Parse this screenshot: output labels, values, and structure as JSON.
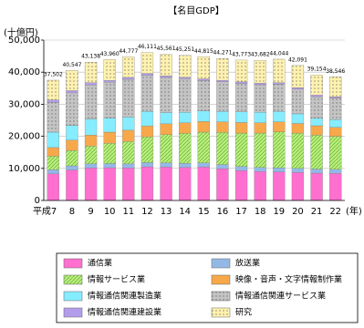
{
  "chart_data": {
    "type": "stacked_bar",
    "title": "【名目GDP】",
    "y_label": "(十億円)",
    "x_unit": "(年)",
    "categories": [
      "平成7",
      "8",
      "9",
      "10",
      "11",
      "12",
      "13",
      "14",
      "15",
      "16",
      "17",
      "18",
      "19",
      "20",
      "21",
      "22"
    ],
    "series": [
      {
        "name": "通信業",
        "color": "#ff6fcf",
        "pattern": "none",
        "values": [
          8300,
          9500,
          10100,
          10200,
          10100,
          10500,
          10400,
          10300,
          10400,
          9900,
          9300,
          9000,
          8900,
          8700,
          8500,
          8400
        ]
      },
      {
        "name": "放送業",
        "color": "#94b8e6",
        "pattern": "none",
        "values": [
          1300,
          1300,
          1300,
          1300,
          1300,
          1300,
          1300,
          1300,
          1300,
          1300,
          1300,
          1300,
          1300,
          1300,
          1300,
          1300
        ]
      },
      {
        "name": "情報サービス業",
        "color": "#b8f07c",
        "pattern": "hatch",
        "values": [
          4200,
          4800,
          5600,
          6300,
          7000,
          8000,
          8800,
          9300,
          9600,
          10000,
          10400,
          10700,
          11200,
          11000,
          10600,
          10300
        ]
      },
      {
        "name": "映像・音声・文字情報制作業",
        "color": "#f7a84a",
        "pattern": "none",
        "values": [
          2700,
          3200,
          3400,
          3500,
          3500,
          3400,
          3400,
          3300,
          3300,
          3300,
          3300,
          3200,
          3100,
          3000,
          2900,
          2800
        ]
      },
      {
        "name": "情報通信関連製造業",
        "color": "#86ecff",
        "pattern": "none",
        "values": [
          4800,
          4600,
          5000,
          4400,
          4100,
          4600,
          3500,
          3300,
          3300,
          3300,
          3300,
          3300,
          3300,
          3000,
          2300,
          2400
        ]
      },
      {
        "name": "情報通信関連サービス業",
        "color": "#c4c4c4",
        "pattern": "dots",
        "values": [
          9302,
          10147,
          10638,
          11160,
          11777,
          11211,
          10961,
          10451,
          9515,
          9171,
          8873,
          8582,
          8444,
          7691,
          6754,
          6746
        ]
      },
      {
        "name": "情報通信関連建設業",
        "color": "#b49cec",
        "pattern": "none",
        "values": [
          700,
          700,
          700,
          600,
          600,
          600,
          500,
          500,
          500,
          500,
          500,
          500,
          500,
          500,
          500,
          400
        ]
      },
      {
        "name": "研究",
        "color": "#fff2b0",
        "pattern": "dots",
        "values": [
          6200,
          6300,
          6400,
          6500,
          6400,
          6500,
          6700,
          6800,
          6900,
          6800,
          6800,
          7100,
          7300,
          6900,
          6300,
          6200
        ]
      }
    ],
    "totals": {
      "values": [
        37502,
        40547,
        43138,
        43960,
        44777,
        46111,
        45561,
        45251,
        44815,
        44271,
        43773,
        43682,
        44044,
        42091,
        39154,
        38546
      ],
      "value_labels": [
        "37,502",
        "40,547",
        "43,138",
        "43,960",
        "44,777",
        "46,111",
        "45,561",
        "45,251",
        "44,815",
        "44,271",
        "43,773",
        "43,682",
        "44,044",
        "42,091",
        "39,154",
        "38,546"
      ]
    },
    "ylim": [
      0,
      50000
    ],
    "yticks": [
      0,
      {
        "value": 10000,
        "label": "10,000"
      },
      {
        "value": 20000,
        "label": "20,000"
      },
      {
        "value": 30000,
        "label": "30,000"
      },
      {
        "value": 40000,
        "label": "40,000"
      },
      {
        "value": 50000,
        "label": "50,000"
      }
    ],
    "grid": true
  }
}
